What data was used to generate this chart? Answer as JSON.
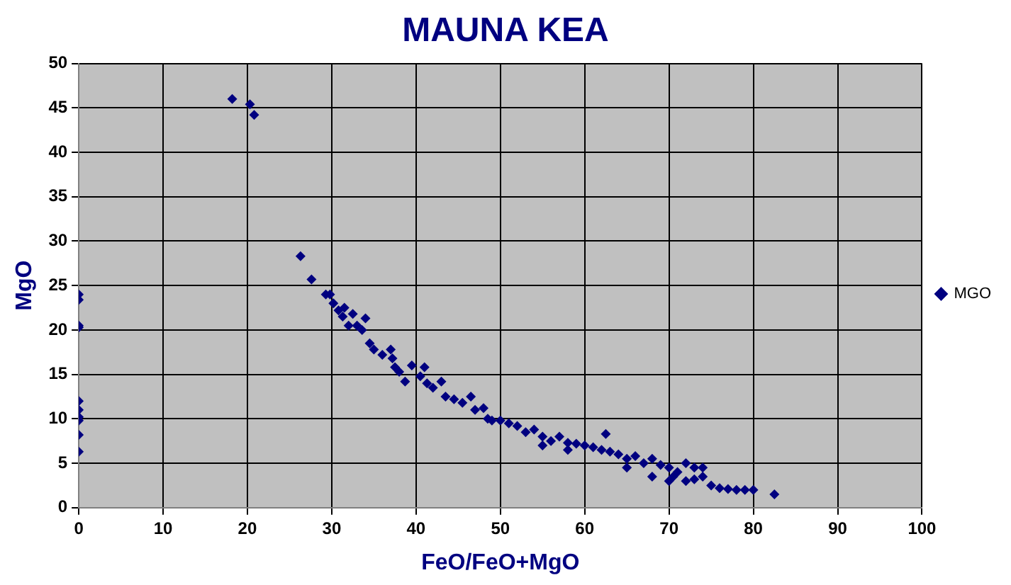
{
  "chart_data": {
    "type": "scatter",
    "title": "MAUNA KEA",
    "xlabel": "FeO/FeO+MgO",
    "ylabel": "MgO",
    "xlim": [
      0,
      100
    ],
    "xticks": [
      0,
      10,
      20,
      30,
      40,
      50,
      60,
      70,
      80,
      90,
      100
    ],
    "ylim": [
      0,
      50
    ],
    "yticks": [
      0,
      5,
      10,
      15,
      20,
      25,
      30,
      35,
      40,
      45,
      50
    ],
    "grid": true,
    "legend": "right",
    "marker": "diamond",
    "series": [
      {
        "name": "MGO",
        "color": "#000080",
        "x": [
          0,
          0,
          0,
          0,
          0,
          0,
          0,
          0,
          0,
          0,
          18.2,
          20.3,
          20.8,
          26.3,
          27.6,
          29.3,
          29.8,
          30.2,
          30.8,
          31.3,
          31.5,
          32,
          32.5,
          33,
          33.6,
          34,
          34.5,
          35,
          36,
          37,
          37.2,
          37.5,
          38,
          38.7,
          39.5,
          40.5,
          41,
          41.3,
          42,
          43,
          43.5,
          44.5,
          45.5,
          46.5,
          47,
          48,
          48.5,
          49,
          50,
          51,
          52,
          53,
          54,
          55,
          55,
          56,
          57,
          58,
          58,
          59,
          60,
          61,
          62,
          62.5,
          63,
          64,
          65,
          65,
          66,
          67,
          68,
          68,
          69,
          70,
          70,
          70.5,
          71,
          72,
          72,
          73,
          73,
          74,
          74,
          75,
          76,
          77,
          78,
          79,
          80,
          82.5
        ],
        "values": [
          24,
          23.4,
          20.5,
          20.3,
          12,
          11,
          10.2,
          9.8,
          8.2,
          6.3,
          46,
          45.4,
          44.2,
          28.3,
          25.7,
          24,
          24,
          23,
          22.2,
          21.5,
          22.5,
          20.5,
          21.8,
          20.5,
          20,
          21.3,
          18.5,
          17.8,
          17.2,
          17.8,
          16.8,
          15.8,
          15.3,
          14.2,
          16,
          14.8,
          15.8,
          14,
          13.5,
          14.2,
          12.5,
          12.2,
          11.8,
          12.5,
          11,
          11.2,
          10,
          9.8,
          9.8,
          9.5,
          9.2,
          8.5,
          8.8,
          8,
          7,
          7.5,
          8,
          7.3,
          6.5,
          7.2,
          7,
          6.8,
          6.5,
          8.3,
          6.3,
          6,
          5.5,
          4.5,
          5.8,
          5,
          5.5,
          3.5,
          4.8,
          4.5,
          3,
          3.5,
          4,
          5,
          3,
          4.5,
          3.2,
          3.5,
          4.5,
          2.5,
          2.2,
          2.1,
          2,
          2,
          2,
          1.5
        ]
      }
    ]
  }
}
